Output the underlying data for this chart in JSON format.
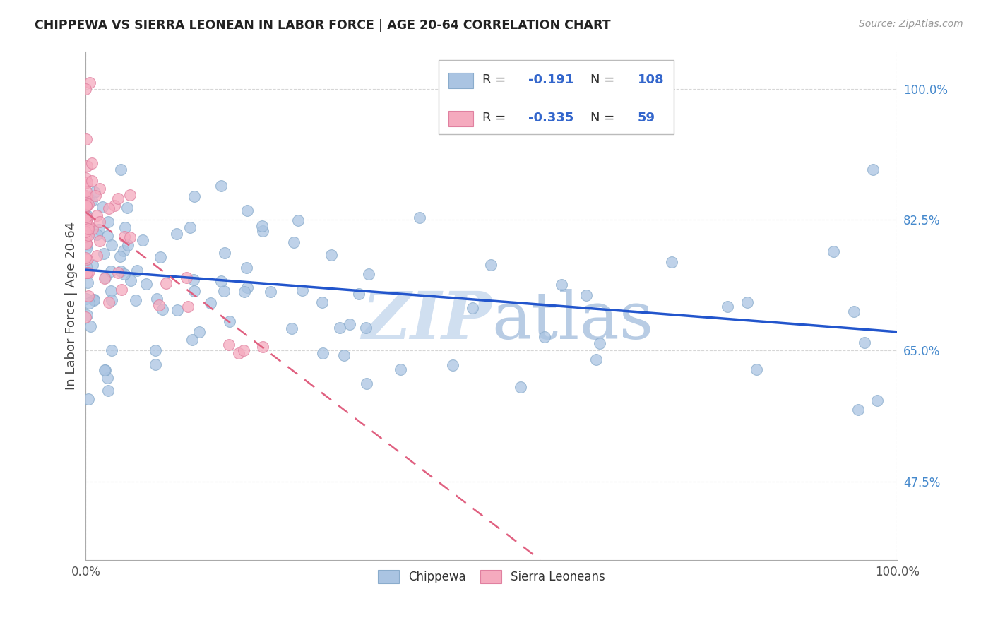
{
  "title": "CHIPPEWA VS SIERRA LEONEAN IN LABOR FORCE | AGE 20-64 CORRELATION CHART",
  "source": "Source: ZipAtlas.com",
  "ylabel": "In Labor Force | Age 20-64",
  "x_tick_labels": [
    "0.0%",
    "100.0%"
  ],
  "y_tick_labels": [
    "47.5%",
    "65.0%",
    "82.5%",
    "100.0%"
  ],
  "y_tick_values": [
    0.475,
    0.65,
    0.825,
    1.0
  ],
  "x_min": 0.0,
  "x_max": 1.0,
  "y_min": 0.37,
  "y_max": 1.05,
  "chippewa_color": "#aac4e2",
  "chippewa_edge": "#8aaccc",
  "sierra_color": "#f5aabe",
  "sierra_edge": "#e080a0",
  "chippewa_trend_color": "#2255cc",
  "sierra_trend_color": "#e06080",
  "legend_R1": "-0.191",
  "legend_N1": "108",
  "legend_R2": "-0.335",
  "legend_N2": "59",
  "legend_color": "#3366cc",
  "watermark_color": "#d0dff0",
  "grid_color": "#cccccc",
  "ytick_color": "#4488cc",
  "xtick_color": "#555555",
  "chip_trend_y0": 0.758,
  "chip_trend_y1": 0.675,
  "sierra_trend_y0": 0.835,
  "sierra_trend_y1": 0.37,
  "sierra_trend_x1": 0.56
}
